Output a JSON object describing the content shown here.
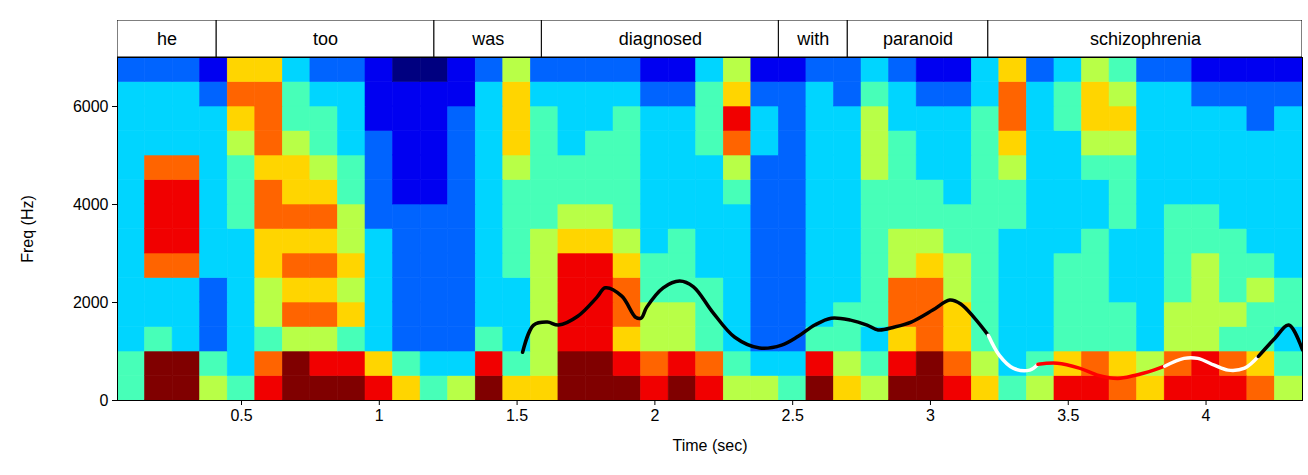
{
  "chart_data": {
    "type": "heatmap",
    "xlabel": "Time (sec)",
    "ylabel": "Freq (Hz)",
    "xlim": [
      0.05,
      4.35
    ],
    "ylim": [
      0,
      7000
    ],
    "xticks": [
      0.5,
      1,
      1.5,
      2,
      2.5,
      3,
      3.5,
      4
    ],
    "yticks": [
      0,
      2000,
      4000,
      6000
    ],
    "segments": [
      {
        "label": "he",
        "start": 0.05,
        "end": 0.41
      },
      {
        "label": "too",
        "start": 0.41,
        "end": 1.2
      },
      {
        "label": "was",
        "start": 1.2,
        "end": 1.59
      },
      {
        "label": "diagnosed",
        "start": 1.59,
        "end": 2.45
      },
      {
        "label": "with",
        "start": 2.45,
        "end": 2.7
      },
      {
        "label": "paranoid",
        "start": 2.7,
        "end": 3.21
      },
      {
        "label": "schizophrenia",
        "start": 3.21,
        "end": 4.35
      }
    ],
    "cells": {
      "zlim": [
        0,
        9
      ],
      "x_edges": [
        0.05,
        0.15,
        0.25,
        0.35,
        0.45,
        0.55,
        0.65,
        0.75,
        0.85,
        0.95,
        1.05,
        1.15,
        1.25,
        1.35,
        1.45,
        1.55,
        1.65,
        1.75,
        1.85,
        1.95,
        2.05,
        2.15,
        2.25,
        2.35,
        2.45,
        2.55,
        2.65,
        2.75,
        2.85,
        2.95,
        3.05,
        3.15,
        3.25,
        3.35,
        3.45,
        3.55,
        3.65,
        3.75,
        3.85,
        3.95,
        4.05,
        4.15,
        4.25,
        4.35
      ],
      "y_edges": [
        0,
        500,
        1000,
        1500,
        2000,
        2500,
        3000,
        3500,
        4000,
        4500,
        5000,
        5500,
        6000,
        6500,
        7000
      ],
      "z": [
        [
          4,
          9,
          9,
          5,
          4,
          8,
          9,
          9,
          9,
          8,
          6,
          4,
          5,
          9,
          6,
          6,
          9,
          9,
          9,
          8,
          9,
          8,
          5,
          5,
          4,
          9,
          6,
          5,
          9,
          9,
          8,
          6,
          4,
          5,
          8,
          8,
          7,
          6,
          8,
          8,
          8,
          7,
          5
        ],
        [
          4,
          9,
          9,
          4,
          3,
          7,
          9,
          8,
          8,
          6,
          4,
          3,
          3,
          8,
          4,
          5,
          9,
          9,
          8,
          7,
          8,
          7,
          4,
          3,
          3,
          8,
          5,
          4,
          8,
          9,
          7,
          5,
          3,
          4,
          6,
          7,
          6,
          5,
          7,
          8,
          7,
          6,
          4
        ],
        [
          3,
          4,
          3,
          2,
          3,
          4,
          5,
          5,
          4,
          3,
          2,
          2,
          2,
          4,
          3,
          5,
          8,
          8,
          6,
          5,
          5,
          4,
          3,
          2,
          2,
          4,
          4,
          3,
          6,
          7,
          6,
          4,
          3,
          3,
          4,
          4,
          4,
          3,
          5,
          5,
          4,
          4,
          3
        ],
        [
          3,
          3,
          3,
          2,
          3,
          5,
          7,
          7,
          6,
          3,
          2,
          2,
          2,
          3,
          3,
          5,
          8,
          8,
          7,
          5,
          5,
          4,
          3,
          2,
          2,
          3,
          4,
          4,
          7,
          7,
          6,
          4,
          3,
          3,
          4,
          4,
          4,
          3,
          5,
          5,
          5,
          4,
          4
        ],
        [
          3,
          3,
          3,
          2,
          3,
          5,
          6,
          6,
          5,
          3,
          2,
          2,
          2,
          3,
          3,
          5,
          8,
          8,
          7,
          4,
          4,
          4,
          3,
          2,
          2,
          3,
          3,
          4,
          7,
          7,
          5,
          4,
          3,
          3,
          4,
          4,
          3,
          3,
          4,
          5,
          4,
          5,
          4
        ],
        [
          3,
          7,
          7,
          3,
          3,
          6,
          7,
          7,
          6,
          3,
          2,
          2,
          2,
          3,
          4,
          5,
          8,
          8,
          6,
          4,
          4,
          3,
          3,
          2,
          2,
          3,
          3,
          4,
          5,
          6,
          5,
          4,
          3,
          3,
          4,
          4,
          3,
          3,
          4,
          5,
          4,
          4,
          3
        ],
        [
          3,
          8,
          8,
          3,
          3,
          6,
          6,
          6,
          5,
          3,
          2,
          2,
          2,
          3,
          4,
          5,
          6,
          6,
          5,
          3,
          4,
          3,
          3,
          2,
          2,
          3,
          3,
          4,
          5,
          5,
          4,
          4,
          3,
          3,
          3,
          4,
          3,
          3,
          4,
          4,
          4,
          3,
          3
        ],
        [
          3,
          8,
          8,
          3,
          4,
          7,
          7,
          7,
          5,
          2,
          2,
          2,
          2,
          3,
          4,
          4,
          5,
          5,
          4,
          3,
          3,
          3,
          3,
          2,
          2,
          3,
          3,
          4,
          4,
          4,
          4,
          4,
          4,
          3,
          3,
          3,
          4,
          3,
          4,
          4,
          3,
          3,
          3
        ],
        [
          3,
          8,
          8,
          3,
          4,
          7,
          6,
          6,
          4,
          2,
          1,
          1,
          2,
          3,
          4,
          4,
          4,
          4,
          4,
          3,
          3,
          3,
          4,
          2,
          2,
          3,
          3,
          4,
          4,
          4,
          3,
          4,
          4,
          3,
          3,
          3,
          4,
          3,
          3,
          3,
          3,
          3,
          3
        ],
        [
          3,
          7,
          7,
          3,
          4,
          6,
          6,
          5,
          4,
          2,
          1,
          1,
          2,
          3,
          5,
          4,
          4,
          4,
          4,
          3,
          3,
          3,
          5,
          2,
          2,
          3,
          3,
          5,
          4,
          3,
          3,
          4,
          5,
          3,
          3,
          4,
          4,
          3,
          3,
          3,
          3,
          3,
          3
        ],
        [
          3,
          3,
          3,
          3,
          5,
          7,
          5,
          4,
          3,
          2,
          1,
          1,
          2,
          3,
          6,
          4,
          3,
          4,
          4,
          3,
          3,
          4,
          7,
          3,
          2,
          3,
          3,
          5,
          4,
          3,
          3,
          4,
          6,
          3,
          3,
          5,
          5,
          3,
          3,
          3,
          3,
          3,
          3
        ],
        [
          3,
          3,
          3,
          3,
          6,
          7,
          4,
          4,
          3,
          1,
          1,
          1,
          2,
          3,
          6,
          4,
          3,
          3,
          4,
          3,
          3,
          4,
          8,
          3,
          2,
          3,
          3,
          5,
          3,
          3,
          3,
          4,
          7,
          3,
          4,
          6,
          6,
          3,
          3,
          3,
          3,
          2,
          3
        ],
        [
          3,
          3,
          3,
          2,
          7,
          7,
          4,
          3,
          3,
          1,
          1,
          1,
          1,
          3,
          6,
          3,
          3,
          3,
          3,
          2,
          2,
          4,
          6,
          2,
          2,
          3,
          2,
          4,
          3,
          2,
          2,
          3,
          7,
          3,
          4,
          6,
          5,
          3,
          3,
          2,
          2,
          2,
          2
        ],
        [
          2,
          2,
          2,
          1,
          6,
          6,
          3,
          2,
          2,
          1,
          0,
          0,
          1,
          2,
          5,
          2,
          2,
          2,
          2,
          1,
          1,
          3,
          5,
          1,
          1,
          2,
          2,
          3,
          2,
          1,
          1,
          3,
          6,
          2,
          3,
          5,
          4,
          2,
          2,
          1,
          1,
          1,
          1
        ]
      ]
    },
    "series": [
      {
        "color": "#000000",
        "x": [
          1.52,
          1.56,
          1.61,
          1.65,
          1.72,
          1.79,
          1.82,
          1.88,
          1.93,
          1.95,
          1.97,
          2.03,
          2.09,
          2.14,
          2.21,
          2.29,
          2.38,
          2.46,
          2.52,
          2.58,
          2.64,
          2.71,
          2.77,
          2.81,
          2.87,
          2.93,
          3.01,
          3.07,
          3.11,
          3.16,
          3.21
        ],
        "values": [
          985,
          1540,
          1600,
          1540,
          1720,
          2110,
          2300,
          2130,
          1700,
          1680,
          1900,
          2300,
          2440,
          2320,
          1800,
          1290,
          1070,
          1130,
          1310,
          1540,
          1680,
          1640,
          1540,
          1440,
          1500,
          1600,
          1850,
          2050,
          1970,
          1680,
          1330
        ]
      },
      {
        "color": "#ffffff",
        "x": [
          3.21,
          3.25,
          3.3,
          3.36,
          3.39
        ],
        "values": [
          1330,
          920,
          660,
          620,
          740
        ]
      },
      {
        "color": "#ff0000",
        "x": [
          3.39,
          3.46,
          3.54,
          3.61,
          3.68,
          3.74,
          3.81,
          3.85
        ],
        "values": [
          740,
          760,
          660,
          510,
          450,
          510,
          620,
          700
        ]
      },
      {
        "color": "#ffffff",
        "x": [
          3.85,
          3.92,
          3.97,
          4.03,
          4.08,
          4.14,
          4.19
        ],
        "values": [
          700,
          860,
          860,
          720,
          620,
          660,
          900
        ]
      },
      {
        "color": "#000000",
        "x": [
          4.19,
          4.25,
          4.3,
          4.35
        ],
        "values": [
          900,
          1270,
          1540,
          1030
        ]
      }
    ]
  }
}
